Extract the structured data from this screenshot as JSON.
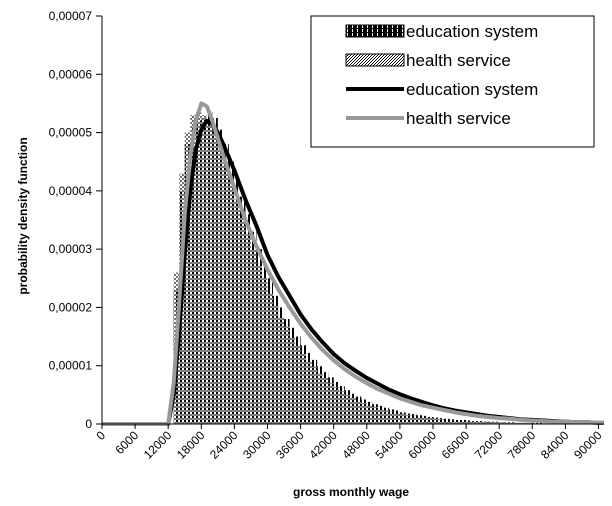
{
  "chart_data": {
    "type": "bar",
    "xlabel": "gross monthly wage",
    "ylabel": "probability density function",
    "xlim": [
      0,
      91000
    ],
    "ylim": [
      0,
      7e-05
    ],
    "y_ticks": [
      "0",
      "0,00001",
      "0,00002",
      "0,00003",
      "0,00004",
      "0,00005",
      "0,00006",
      "0,00007"
    ],
    "x_ticks": [
      "0",
      "6000",
      "12000",
      "18000",
      "24000",
      "30000",
      "36000",
      "42000",
      "48000",
      "54000",
      "60000",
      "66000",
      "72000",
      "78000",
      "84000",
      "90000"
    ],
    "legend_position": "top-right",
    "grid": false,
    "series": [
      {
        "name": "education system",
        "kind": "histogram",
        "color": "#000000",
        "pattern": "vertical-lines",
        "bin_width": 1000,
        "x": [
          13500,
          14500,
          15500,
          16500,
          17500,
          18500,
          19500,
          20500,
          21500,
          22500,
          23500,
          24500,
          25500,
          26500,
          27500,
          28500,
          29500,
          30500,
          31500,
          32500,
          33500,
          34500,
          35500,
          36500,
          37500,
          38500,
          39500,
          40500,
          41500,
          42500,
          43500,
          44500,
          45500,
          46500,
          47500,
          48500,
          49500,
          50500,
          51500,
          52500,
          53500,
          54500,
          55500,
          56500,
          57500,
          58500,
          59500,
          60500,
          61500,
          62500,
          63500,
          64500,
          65500,
          66500,
          67500,
          68500,
          69500,
          70500,
          71500,
          72500,
          73500,
          74500,
          75500,
          76500,
          77500,
          78500,
          79500,
          80500,
          81500,
          82500,
          83500,
          84500,
          85500,
          86500,
          87500,
          88500,
          89500,
          90500
        ],
        "values": [
          2.3e-05,
          4e-05,
          4.8e-05,
          5.1e-05,
          5.2e-05,
          5.25e-05,
          5.35e-05,
          5.25e-05,
          5.05e-05,
          4.8e-05,
          4.5e-05,
          4.2e-05,
          3.9e-05,
          3.6e-05,
          3.3e-05,
          3e-05,
          2.7e-05,
          2.5e-05,
          2.2e-05,
          2e-05,
          1.8e-05,
          1.65e-05,
          1.5e-05,
          1.35e-05,
          1.22e-05,
          1.1e-05,
          9.9e-06,
          8.9e-06,
          8e-06,
          7.2e-06,
          6.5e-06,
          5.8e-06,
          5.2e-06,
          4.7e-06,
          4.2e-06,
          3.8e-06,
          3.4e-06,
          3.1e-06,
          2.8e-06,
          2.5e-06,
          2.3e-06,
          2e-06,
          1.8e-06,
          1.7e-06,
          1.5e-06,
          1.4e-06,
          1.2e-06,
          1.1e-06,
          1e-06,
          9e-07,
          8e-07,
          7e-07,
          7e-07,
          6e-07,
          5e-07,
          5e-07,
          4e-07,
          4e-07,
          4e-07,
          3e-07,
          3e-07,
          3e-07,
          2e-07,
          2e-07,
          2e-07,
          2e-07,
          2e-07,
          1e-07,
          1e-07,
          1e-07,
          1e-07,
          1e-07,
          1e-07,
          1e-07,
          1e-07,
          1e-07,
          1e-07,
          1e-07
        ]
      },
      {
        "name": "health service",
        "kind": "histogram",
        "color": "#000000",
        "pattern": "dots",
        "bin_width": 1000,
        "x": [
          13500,
          14500,
          15500,
          16500,
          17500,
          18500,
          19500,
          20500,
          21500,
          22500,
          23500,
          24500,
          25500,
          26500,
          27500,
          28500,
          29500,
          30500,
          31500,
          32500,
          33500,
          34500,
          35500,
          36500,
          37500,
          38500,
          39500,
          40500,
          41500,
          42500,
          43500,
          44500,
          45500,
          46500,
          47500,
          48500,
          49500,
          50500,
          51500,
          52500,
          53500,
          54500,
          55500,
          56500,
          57500,
          58500,
          59500,
          60500,
          61500,
          62500,
          63500,
          64500,
          65500,
          66500,
          67500,
          68500,
          69500,
          70500,
          71500,
          72500,
          73500,
          74500,
          75500,
          76500,
          77500,
          78500,
          79500,
          80500,
          81500,
          82500,
          83500,
          84500,
          85500,
          86500,
          87500,
          88500,
          89500,
          90500
        ],
        "values": [
          2.6e-05,
          4.3e-05,
          5e-05,
          5.3e-05,
          5.35e-05,
          5.3e-05,
          5.2e-05,
          5e-05,
          4.75e-05,
          4.45e-05,
          4.15e-05,
          3.85e-05,
          3.55e-05,
          3.25e-05,
          3e-05,
          2.75e-05,
          2.5e-05,
          2.25e-05,
          2.05e-05,
          1.85e-05,
          1.67e-05,
          1.5e-05,
          1.35e-05,
          1.21e-05,
          1.09e-05,
          9.8e-06,
          8.8e-06,
          7.9e-06,
          7e-06,
          6.3e-06,
          5.6e-06,
          5e-06,
          4.5e-06,
          4e-06,
          3.6e-06,
          3.2e-06,
          2.9e-06,
          2.6e-06,
          2.3e-06,
          2.1e-06,
          1.9e-06,
          1.7e-06,
          1.5e-06,
          1.4e-06,
          1.2e-06,
          1.1e-06,
          1e-06,
          9e-07,
          8e-07,
          7e-07,
          7e-07,
          6e-07,
          5e-07,
          5e-07,
          4e-07,
          4e-07,
          4e-07,
          3e-07,
          3e-07,
          3e-07,
          2e-07,
          2e-07,
          2e-07,
          2e-07,
          2e-07,
          1e-07,
          1e-07,
          1e-07,
          1e-07,
          1e-07,
          1e-07,
          1e-07,
          1e-07,
          1e-07,
          1e-07,
          1e-07,
          1e-07,
          1e-07
        ]
      },
      {
        "name": "education system",
        "kind": "line",
        "color": "#000000",
        "x": [
          0,
          6000,
          10000,
          12000,
          13000,
          14000,
          15000,
          16000,
          17000,
          18000,
          19000,
          20000,
          21000,
          22000,
          24000,
          26000,
          28000,
          30000,
          32000,
          34000,
          36000,
          38000,
          40000,
          42000,
          44000,
          46000,
          48000,
          50000,
          52000,
          54000,
          56000,
          58000,
          60000,
          62000,
          64000,
          66000,
          68000,
          70000,
          72000,
          74000,
          76000,
          78000,
          80000,
          82000,
          84000,
          86000,
          88000,
          90000,
          91000
        ],
        "values": [
          0,
          0,
          0,
          0,
          5e-06,
          1.6e-05,
          2.9e-05,
          4e-05,
          4.7e-05,
          5.05e-05,
          5.2e-05,
          5.15e-05,
          5e-05,
          4.8e-05,
          4.35e-05,
          3.85e-05,
          3.4e-05,
          2.9e-05,
          2.52e-05,
          2.2e-05,
          1.88e-05,
          1.62e-05,
          1.4e-05,
          1.2e-05,
          1.04e-05,
          9.1e-06,
          7.9e-06,
          6.9e-06,
          5.9e-06,
          5.1e-06,
          4.4e-06,
          3.8e-06,
          3.2e-06,
          2.7e-06,
          2.3e-06,
          2e-06,
          1.7e-06,
          1.4e-06,
          1.2e-06,
          1e-06,
          8e-07,
          7e-07,
          6e-07,
          5e-07,
          4e-07,
          3e-07,
          3e-07,
          2e-07,
          2e-07
        ]
      },
      {
        "name": "health service",
        "kind": "line",
        "color": "#999999",
        "x": [
          0,
          6000,
          10000,
          12000,
          13000,
          14000,
          15000,
          16000,
          17000,
          18000,
          19000,
          20000,
          21000,
          22000,
          24000,
          26000,
          28000,
          30000,
          32000,
          34000,
          36000,
          38000,
          40000,
          42000,
          44000,
          46000,
          48000,
          50000,
          52000,
          54000,
          56000,
          58000,
          60000,
          62000,
          64000,
          66000,
          68000,
          70000,
          72000,
          74000,
          76000,
          78000,
          80000,
          82000,
          84000,
          86000,
          88000,
          90000,
          91000
        ],
        "values": [
          0,
          0,
          0,
          0,
          7e-06,
          2.1e-05,
          3.6e-05,
          4.6e-05,
          5.2e-05,
          5.5e-05,
          5.45e-05,
          5.2e-05,
          4.9e-05,
          4.6e-05,
          4.05e-05,
          3.5e-05,
          3.05e-05,
          2.65e-05,
          2.3e-05,
          2e-05,
          1.72e-05,
          1.48e-05,
          1.27e-05,
          1.09e-05,
          9.4e-06,
          8.1e-06,
          7e-06,
          6e-06,
          5.2e-06,
          4.4e-06,
          3.8e-06,
          3.2e-06,
          2.8e-06,
          2.4e-06,
          2e-06,
          1.7e-06,
          1.4e-06,
          1.2e-06,
          1e-06,
          9e-07,
          7e-07,
          6e-07,
          5e-07,
          4e-07,
          4e-07,
          3e-07,
          3e-07,
          2e-07,
          2e-07
        ]
      }
    ]
  }
}
